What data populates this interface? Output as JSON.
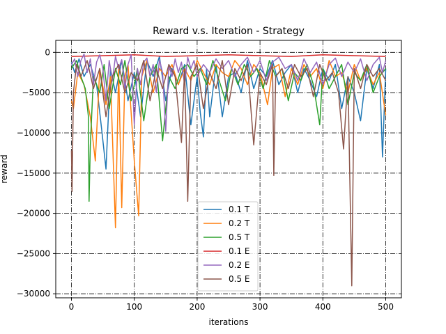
{
  "chart_data": {
    "type": "line",
    "title": "Reward v.s. Iteration - Strategy",
    "xlabel": "iterations",
    "ylabel": "reward",
    "xlim": [
      -25,
      525
    ],
    "ylim": [
      -30500,
      1500
    ],
    "xticks": [
      0,
      100,
      200,
      300,
      400,
      500
    ],
    "yticks": [
      0,
      -5000,
      -10000,
      -15000,
      -20000,
      -25000,
      -30000
    ],
    "grid": true,
    "legend_position": "bottom-center",
    "series": [
      {
        "name": "0.1 T",
        "color": "#1f77b4",
        "points": [
          [
            0,
            -1200
          ],
          [
            5,
            -2500
          ],
          [
            12,
            -800
          ],
          [
            20,
            -3000
          ],
          [
            30,
            -1500
          ],
          [
            40,
            -4000
          ],
          [
            48,
            -9500
          ],
          [
            55,
            -14500
          ],
          [
            62,
            -2000
          ],
          [
            70,
            -5000
          ],
          [
            80,
            -1000
          ],
          [
            90,
            -6000
          ],
          [
            100,
            -2500
          ],
          [
            110,
            -8000
          ],
          [
            120,
            -1000
          ],
          [
            130,
            -3000
          ],
          [
            140,
            -500
          ],
          [
            150,
            -6000
          ],
          [
            160,
            -2000
          ],
          [
            170,
            -4000
          ],
          [
            180,
            -1500
          ],
          [
            190,
            -9000
          ],
          [
            200,
            -3000
          ],
          [
            205,
            -7500
          ],
          [
            210,
            -10500
          ],
          [
            215,
            -2000
          ],
          [
            220,
            -8000
          ],
          [
            230,
            -1500
          ],
          [
            240,
            -8000
          ],
          [
            250,
            -3000
          ],
          [
            260,
            -2500
          ],
          [
            270,
            -5000
          ],
          [
            280,
            -1000
          ],
          [
            290,
            -4500
          ],
          [
            300,
            -2000
          ],
          [
            310,
            -3000
          ],
          [
            320,
            -1000
          ],
          [
            330,
            -4000
          ],
          [
            340,
            -2500
          ],
          [
            350,
            -1500
          ],
          [
            360,
            -5000
          ],
          [
            370,
            -2000
          ],
          [
            380,
            -3500
          ],
          [
            390,
            -5500
          ],
          [
            400,
            -2000
          ],
          [
            410,
            -3500
          ],
          [
            420,
            -1500
          ],
          [
            430,
            -7000
          ],
          [
            440,
            -3000
          ],
          [
            450,
            -5000
          ],
          [
            460,
            -8500
          ],
          [
            470,
            -2000
          ],
          [
            480,
            -4500
          ],
          [
            490,
            -1500
          ],
          [
            495,
            -13000
          ],
          [
            500,
            -2000
          ]
        ]
      },
      {
        "name": "0.2 T",
        "color": "#ff7f0e",
        "points": [
          [
            0,
            -6000
          ],
          [
            3,
            -7000
          ],
          [
            10,
            -2500
          ],
          [
            20,
            -4000
          ],
          [
            30,
            -8000
          ],
          [
            38,
            -13500
          ],
          [
            45,
            -2000
          ],
          [
            55,
            -6500
          ],
          [
            62,
            -3000
          ],
          [
            70,
            -21800
          ],
          [
            75,
            -2000
          ],
          [
            80,
            -19300
          ],
          [
            85,
            -3000
          ],
          [
            90,
            -1500
          ],
          [
            100,
            -13500
          ],
          [
            107,
            -20300
          ],
          [
            112,
            -3000
          ],
          [
            120,
            -1000
          ],
          [
            130,
            -5000
          ],
          [
            140,
            -2000
          ],
          [
            150,
            -3000
          ],
          [
            160,
            -1500
          ],
          [
            170,
            -4000
          ],
          [
            180,
            -2000
          ],
          [
            190,
            -3500
          ],
          [
            200,
            -1000
          ],
          [
            210,
            -2500
          ],
          [
            220,
            -4000
          ],
          [
            230,
            -1500
          ],
          [
            240,
            -2500
          ],
          [
            250,
            -3000
          ],
          [
            260,
            -1000
          ],
          [
            270,
            -2000
          ],
          [
            280,
            -4000
          ],
          [
            290,
            -1500
          ],
          [
            300,
            -2500
          ],
          [
            312,
            -6500
          ],
          [
            320,
            -2000
          ],
          [
            330,
            -1500
          ],
          [
            340,
            -5500
          ],
          [
            350,
            -2000
          ],
          [
            360,
            -4000
          ],
          [
            370,
            -1500
          ],
          [
            380,
            -3000
          ],
          [
            390,
            -2000
          ],
          [
            400,
            -4500
          ],
          [
            410,
            -1000
          ],
          [
            420,
            -3000
          ],
          [
            430,
            -2500
          ],
          [
            440,
            -5000
          ],
          [
            450,
            -1500
          ],
          [
            460,
            -3500
          ],
          [
            470,
            -2000
          ],
          [
            480,
            -4000
          ],
          [
            490,
            -2500
          ],
          [
            500,
            -7800
          ]
        ]
      },
      {
        "name": "0.5 T",
        "color": "#2ca02c",
        "points": [
          [
            0,
            -2000
          ],
          [
            8,
            -1000
          ],
          [
            15,
            -3000
          ],
          [
            22,
            -4500
          ],
          [
            27,
            -8000
          ],
          [
            28,
            -18500
          ],
          [
            30,
            -11600
          ],
          [
            35,
            -3000
          ],
          [
            45,
            -5000
          ],
          [
            52,
            -1500
          ],
          [
            60,
            -7000
          ],
          [
            70,
            -2000
          ],
          [
            78,
            -4000
          ],
          [
            85,
            -1000
          ],
          [
            95,
            -6000
          ],
          [
            105,
            -2000
          ],
          [
            115,
            -8500
          ],
          [
            125,
            -3000
          ],
          [
            135,
            -1500
          ],
          [
            145,
            -11000
          ],
          [
            155,
            -3000
          ],
          [
            165,
            -4500
          ],
          [
            175,
            -2000
          ],
          [
            185,
            -1500
          ],
          [
            195,
            -3000
          ],
          [
            205,
            -2000
          ],
          [
            215,
            -4000
          ],
          [
            225,
            -1000
          ],
          [
            235,
            -3500
          ],
          [
            245,
            -6000
          ],
          [
            255,
            -2000
          ],
          [
            265,
            -4000
          ],
          [
            275,
            -1500
          ],
          [
            285,
            -3000
          ],
          [
            295,
            -2000
          ],
          [
            305,
            -4500
          ],
          [
            315,
            -1000
          ],
          [
            325,
            -3000
          ],
          [
            335,
            -2000
          ],
          [
            345,
            -6000
          ],
          [
            355,
            -2500
          ],
          [
            365,
            -3500
          ],
          [
            375,
            -1500
          ],
          [
            385,
            -4000
          ],
          [
            395,
            -9000
          ],
          [
            400,
            -2000
          ],
          [
            410,
            -4500
          ],
          [
            420,
            -3000
          ],
          [
            430,
            -1500
          ],
          [
            440,
            -6500
          ],
          [
            450,
            -2500
          ],
          [
            460,
            -3500
          ],
          [
            470,
            -1500
          ],
          [
            480,
            -5000
          ],
          [
            490,
            -3000
          ],
          [
            500,
            -2000
          ]
        ]
      },
      {
        "name": "0.1 E",
        "color": "#d62728",
        "points": [
          [
            0,
            -500
          ],
          [
            50,
            -400
          ],
          [
            100,
            -300
          ],
          [
            150,
            -500
          ],
          [
            200,
            -400
          ],
          [
            250,
            -300
          ],
          [
            300,
            -400
          ],
          [
            350,
            -500
          ],
          [
            400,
            -300
          ],
          [
            450,
            -400
          ],
          [
            500,
            -500
          ]
        ]
      },
      {
        "name": "0.2 E",
        "color": "#9467bd",
        "points": [
          [
            0,
            -1500
          ],
          [
            5,
            -800
          ],
          [
            10,
            -3000
          ],
          [
            15,
            -1000
          ],
          [
            20,
            -200
          ],
          [
            25,
            -2500
          ],
          [
            30,
            -800
          ],
          [
            35,
            -4000
          ],
          [
            40,
            -1200
          ],
          [
            45,
            -300
          ],
          [
            50,
            -2000
          ],
          [
            55,
            -6000
          ],
          [
            60,
            -1000
          ],
          [
            65,
            -3500
          ],
          [
            70,
            -500
          ],
          [
            75,
            -2000
          ],
          [
            80,
            -900
          ],
          [
            85,
            -4500
          ],
          [
            90,
            -1500
          ],
          [
            95,
            -300
          ],
          [
            100,
            -9000
          ],
          [
            105,
            -2000
          ],
          [
            110,
            -4000
          ],
          [
            115,
            -1200
          ],
          [
            120,
            -700
          ],
          [
            125,
            -3000
          ],
          [
            130,
            -1500
          ],
          [
            135,
            -5000
          ],
          [
            140,
            -900
          ],
          [
            145,
            -2500
          ],
          [
            150,
            -9800
          ],
          [
            155,
            -1500
          ],
          [
            160,
            -3000
          ],
          [
            165,
            -800
          ],
          [
            170,
            -2500
          ],
          [
            175,
            -1200
          ],
          [
            180,
            -4000
          ],
          [
            185,
            -600
          ],
          [
            190,
            -2000
          ],
          [
            195,
            -1000
          ],
          [
            200,
            -3000
          ],
          [
            210,
            -1500
          ],
          [
            220,
            -2500
          ],
          [
            230,
            -800
          ],
          [
            240,
            -2000
          ],
          [
            250,
            -1000
          ],
          [
            260,
            -3000
          ],
          [
            270,
            -1500
          ],
          [
            280,
            -600
          ],
          [
            290,
            -2500
          ],
          [
            300,
            -1000
          ],
          [
            310,
            -3500
          ],
          [
            320,
            -1200
          ],
          [
            330,
            -600
          ],
          [
            340,
            -2000
          ],
          [
            350,
            -1500
          ],
          [
            360,
            -3500
          ],
          [
            370,
            -800
          ],
          [
            380,
            -2500
          ],
          [
            390,
            -1200
          ],
          [
            400,
            -4000
          ],
          [
            410,
            -1500
          ],
          [
            420,
            -700
          ],
          [
            430,
            -3000
          ],
          [
            440,
            -1200
          ],
          [
            450,
            -2500
          ],
          [
            460,
            -800
          ],
          [
            470,
            -3500
          ],
          [
            480,
            -1500
          ],
          [
            490,
            -600
          ],
          [
            495,
            -2500
          ],
          [
            500,
            -1000
          ]
        ]
      },
      {
        "name": "0.5 E",
        "color": "#8c564b",
        "points": [
          [
            0,
            -12200
          ],
          [
            1,
            -17300
          ],
          [
            3,
            -5000
          ],
          [
            8,
            -1500
          ],
          [
            15,
            -3000
          ],
          [
            25,
            -1000
          ],
          [
            35,
            -4500
          ],
          [
            45,
            -2000
          ],
          [
            55,
            -8000
          ],
          [
            65,
            -3000
          ],
          [
            75,
            -1500
          ],
          [
            85,
            -5000
          ],
          [
            95,
            -2500
          ],
          [
            105,
            -3500
          ],
          [
            115,
            -1000
          ],
          [
            125,
            -6000
          ],
          [
            135,
            -2000
          ],
          [
            145,
            -4500
          ],
          [
            155,
            -1500
          ],
          [
            165,
            -3000
          ],
          [
            175,
            -11200
          ],
          [
            180,
            -2000
          ],
          [
            185,
            -18500
          ],
          [
            190,
            -3000
          ],
          [
            200,
            -1500
          ],
          [
            210,
            -7000
          ],
          [
            220,
            -2500
          ],
          [
            230,
            -4500
          ],
          [
            240,
            -1000
          ],
          [
            250,
            -6500
          ],
          [
            260,
            -2000
          ],
          [
            270,
            -3500
          ],
          [
            280,
            -1500
          ],
          [
            290,
            -11500
          ],
          [
            300,
            -2500
          ],
          [
            310,
            -4000
          ],
          [
            320,
            -1500
          ],
          [
            322,
            -15300
          ],
          [
            325,
            -3000
          ],
          [
            335,
            -2000
          ],
          [
            345,
            -4500
          ],
          [
            355,
            -1500
          ],
          [
            365,
            -3000
          ],
          [
            375,
            -2000
          ],
          [
            385,
            -5500
          ],
          [
            395,
            -1500
          ],
          [
            405,
            -3500
          ],
          [
            415,
            -2500
          ],
          [
            425,
            -5000
          ],
          [
            433,
            -12000
          ],
          [
            440,
            -3000
          ],
          [
            446,
            -29000
          ],
          [
            450,
            -2000
          ],
          [
            460,
            -4500
          ],
          [
            470,
            -1500
          ],
          [
            480,
            -3000
          ],
          [
            490,
            -2000
          ],
          [
            500,
            -3500
          ]
        ]
      }
    ]
  }
}
